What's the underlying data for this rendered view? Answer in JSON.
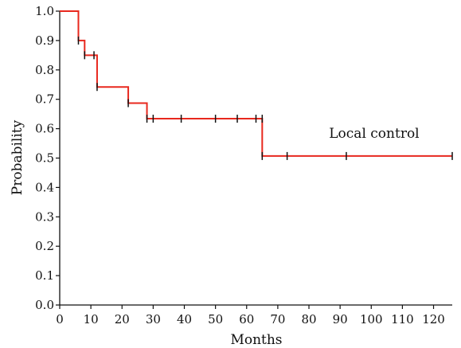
{
  "chart_data": {
    "type": "line",
    "subtype": "kaplan-meier-step",
    "title": "",
    "xlabel": "Months",
    "ylabel": "Probability",
    "xlim": [
      0,
      126
    ],
    "ylim": [
      0.0,
      1.0
    ],
    "grid": false,
    "x_ticks": [
      0,
      10,
      20,
      30,
      40,
      50,
      60,
      70,
      80,
      90,
      100,
      110,
      120
    ],
    "x_tick_labels": [
      "0",
      "10",
      "20",
      "30",
      "40",
      "50",
      "60",
      "70",
      "80",
      "90",
      "100",
      "110",
      "120"
    ],
    "y_ticks": [
      0.0,
      0.1,
      0.2,
      0.3,
      0.4,
      0.5,
      0.6,
      0.7,
      0.8,
      0.9,
      1.0
    ],
    "y_tick_labels": [
      "0.0",
      "0.1",
      "0.2",
      "0.3",
      "0.4",
      "0.5",
      "0.6",
      "0.7",
      "0.8",
      "0.9",
      "1.0"
    ],
    "series": [
      {
        "name": "Local control",
        "color": "#e8281e",
        "steps": [
          {
            "x": 0,
            "y": 1.0
          },
          {
            "x": 6,
            "y": 0.9
          },
          {
            "x": 8,
            "y": 0.85
          },
          {
            "x": 12,
            "y": 0.742
          },
          {
            "x": 22,
            "y": 0.687
          },
          {
            "x": 28,
            "y": 0.634
          },
          {
            "x": 65,
            "y": 0.507
          }
        ],
        "end_x": 126,
        "censored": [
          {
            "x": 6,
            "y": 0.9
          },
          {
            "x": 8,
            "y": 0.85
          },
          {
            "x": 11,
            "y": 0.85
          },
          {
            "x": 12,
            "y": 0.742
          },
          {
            "x": 22,
            "y": 0.687
          },
          {
            "x": 28,
            "y": 0.634
          },
          {
            "x": 30,
            "y": 0.634
          },
          {
            "x": 39,
            "y": 0.634
          },
          {
            "x": 50,
            "y": 0.634
          },
          {
            "x": 57,
            "y": 0.634
          },
          {
            "x": 63,
            "y": 0.634
          },
          {
            "x": 65,
            "y": 0.634
          },
          {
            "x": 65,
            "y": 0.507
          },
          {
            "x": 73,
            "y": 0.507
          },
          {
            "x": 92,
            "y": 0.507
          },
          {
            "x": 126,
            "y": 0.507
          }
        ]
      }
    ],
    "annotations": [
      {
        "text": "Local control",
        "x": 100,
        "y": 0.585
      }
    ]
  }
}
